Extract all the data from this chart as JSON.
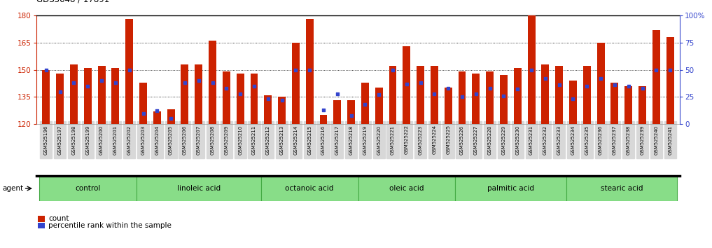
{
  "title": "GDS3648 / 17891",
  "samples": [
    "GSM525196",
    "GSM525197",
    "GSM525198",
    "GSM525199",
    "GSM525200",
    "GSM525201",
    "GSM525202",
    "GSM525203",
    "GSM525204",
    "GSM525205",
    "GSM525206",
    "GSM525207",
    "GSM525208",
    "GSM525209",
    "GSM525210",
    "GSM525211",
    "GSM525212",
    "GSM525213",
    "GSM525214",
    "GSM525215",
    "GSM525216",
    "GSM525217",
    "GSM525218",
    "GSM525219",
    "GSM525220",
    "GSM525221",
    "GSM525222",
    "GSM525223",
    "GSM525224",
    "GSM525225",
    "GSM525226",
    "GSM525227",
    "GSM525228",
    "GSM525229",
    "GSM525230",
    "GSM525231",
    "GSM525232",
    "GSM525233",
    "GSM525234",
    "GSM525235",
    "GSM525236",
    "GSM525237",
    "GSM525238",
    "GSM525239",
    "GSM525240",
    "GSM525241"
  ],
  "counts": [
    150,
    148,
    153,
    151,
    152,
    151,
    178,
    143,
    127,
    128,
    153,
    153,
    166,
    149,
    148,
    148,
    136,
    135,
    165,
    178,
    125,
    133,
    133,
    143,
    140,
    152,
    163,
    152,
    152,
    140,
    149,
    148,
    149,
    147,
    151,
    180,
    153,
    152,
    144,
    152,
    165,
    143,
    141,
    141,
    172,
    168
  ],
  "percentile_ranks_pct": [
    50,
    30,
    38,
    35,
    40,
    38,
    50,
    10,
    12,
    5,
    38,
    40,
    38,
    33,
    28,
    35,
    23,
    22,
    50,
    50,
    13,
    28,
    8,
    18,
    27,
    50,
    37,
    38,
    28,
    33,
    25,
    28,
    33,
    26,
    32,
    50,
    42,
    36,
    23,
    35,
    42,
    36,
    35,
    33,
    50,
    50
  ],
  "groups": [
    {
      "name": "control",
      "start": 0,
      "end": 7
    },
    {
      "name": "linoleic acid",
      "start": 7,
      "end": 16
    },
    {
      "name": "octanoic acid",
      "start": 16,
      "end": 23
    },
    {
      "name": "oleic acid",
      "start": 23,
      "end": 30
    },
    {
      "name": "palmitic acid",
      "start": 30,
      "end": 38
    },
    {
      "name": "stearic acid",
      "start": 38,
      "end": 46
    }
  ],
  "ymin": 120,
  "ymax": 180,
  "yticks_left": [
    120,
    135,
    150,
    165,
    180
  ],
  "yticks_right": [
    0,
    25,
    50,
    75,
    100
  ],
  "bar_color": "#cc2200",
  "dot_color": "#3344cc",
  "bar_width": 0.55,
  "group_fill": "#88dd88",
  "group_edge": "#44aa44",
  "tick_bg": "#d8d8d8"
}
